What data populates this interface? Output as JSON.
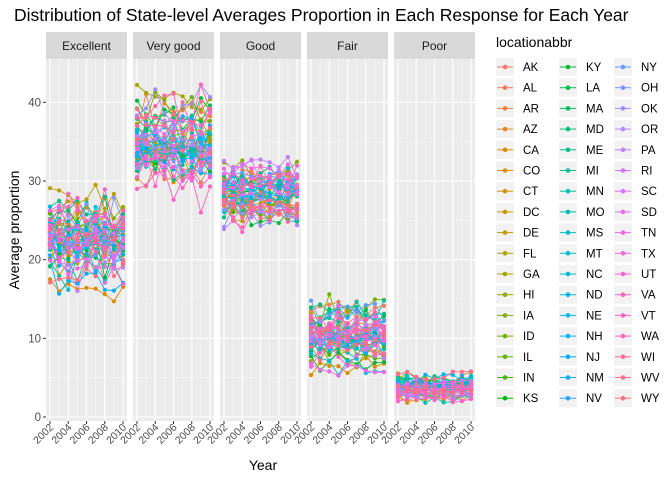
{
  "chart_data": {
    "type": "line",
    "title": "Distribution of State-level Averages Proportion in Each Response for Each Year",
    "xlabel": "Year",
    "ylabel": "Average proportion",
    "facets": [
      "Excellent",
      "Very good",
      "Good",
      "Fair",
      "Poor"
    ],
    "x_ticks": [
      2002,
      2004,
      2006,
      2008,
      2010
    ],
    "x_range": [
      2002,
      2010
    ],
    "y_ticks": [
      0,
      10,
      20,
      30,
      40
    ],
    "ylim": [
      0,
      45
    ],
    "grid": true,
    "legend": {
      "title": "locationabbr",
      "placement": "right",
      "columns": [
        [
          "AK",
          "AL",
          "AR",
          "AZ",
          "CA",
          "CO",
          "CT",
          "DC",
          "DE",
          "FL",
          "GA",
          "HI",
          "IA",
          "ID",
          "IL",
          "IN",
          "KS"
        ],
        [
          "KY",
          "LA",
          "MA",
          "MD",
          "ME",
          "MI",
          "MN",
          "MO",
          "MS",
          "MT",
          "NC",
          "ND",
          "NE",
          "NH",
          "NJ",
          "NM",
          "NV"
        ],
        [
          "NY",
          "OH",
          "OK",
          "OR",
          "PA",
          "RI",
          "SC",
          "SD",
          "TN",
          "TX",
          "UT",
          "VA",
          "VT",
          "WA",
          "WI",
          "WV",
          "WY"
        ]
      ]
    },
    "facet_value_ranges": {
      "Excellent": {
        "center": 22.5,
        "spread": 3.2,
        "min": 11.5,
        "max": 29.5
      },
      "Very good": {
        "center": 34.5,
        "spread": 3.0,
        "min": 26.0,
        "max": 42.5
      },
      "Good": {
        "center": 28.8,
        "spread": 2.2,
        "min": 23.5,
        "max": 36.0
      },
      "Fair": {
        "center": 10.5,
        "spread": 2.2,
        "min": 4.0,
        "max": 17.8
      },
      "Poor": {
        "center": 3.8,
        "spread": 1.0,
        "min": 1.8,
        "max": 9.0
      }
    }
  }
}
